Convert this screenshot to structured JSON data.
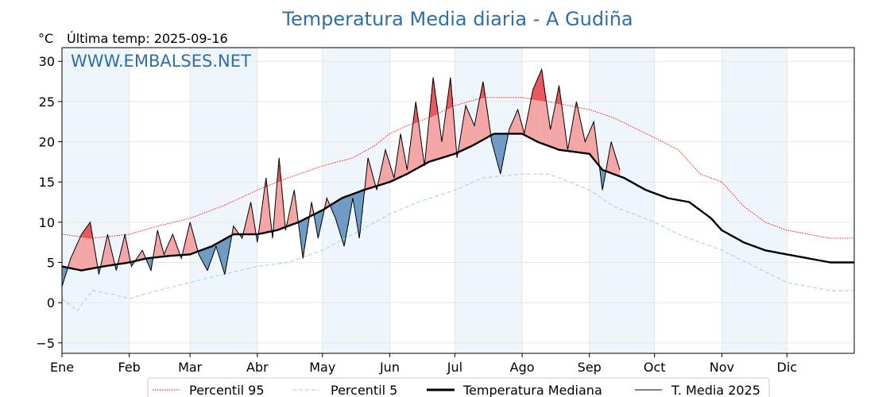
{
  "chart_data": {
    "type": "line",
    "title": "Temperatura Media diaria - A Gudiña",
    "unit_label": "°C",
    "last_temp_label": "Última temp: 2025-09-16",
    "watermark": "WWW.EMBALSES.NET",
    "ylim": [
      -6.3,
      31.7
    ],
    "yticks": [
      -5,
      0,
      5,
      10,
      15,
      20,
      25,
      30
    ],
    "xlim": [
      1,
      366
    ],
    "months": [
      "Ene",
      "Feb",
      "Mar",
      "Abr",
      "May",
      "Jun",
      "Jul",
      "Ago",
      "Sep",
      "Oct",
      "Nov",
      "Dic"
    ],
    "month_start_doy": [
      1,
      32,
      60,
      91,
      121,
      152,
      182,
      213,
      244,
      274,
      305,
      335
    ],
    "shaded_months": [
      "Ene",
      "Mar",
      "May",
      "Jul",
      "Sep",
      "Nov"
    ],
    "grid": true,
    "legend_position": "bottom-center",
    "legend": [
      "Percentil 95",
      "Percentil 5",
      "Temperatura Mediana",
      "T. Media 2025"
    ],
    "colors": {
      "p95": "#ff0000",
      "p5": "#add8e6",
      "median": "#000000",
      "actual": "#000000",
      "above_median_fill": "#f4a6a6",
      "above_p95_fill": "#e8585c",
      "below_median_fill": "#6f9bc4",
      "title": "#2e6fa7",
      "watermark": "#2e6fa7",
      "month_band": "#eef5fb"
    },
    "series": [
      {
        "name": "Percentil 95",
        "style": "dotted",
        "doy": [
          1,
          15,
          32,
          45,
          60,
          75,
          91,
          105,
          121,
          135,
          145,
          152,
          160,
          170,
          182,
          195,
          213,
          225,
          244,
          255,
          274,
          285,
          295,
          305,
          315,
          325,
          335,
          345,
          355,
          366
        ],
        "values": [
          8.5,
          8.0,
          8.5,
          9.5,
          10.5,
          12.0,
          14.0,
          15.5,
          17.0,
          18.0,
          19.5,
          21.0,
          22.0,
          23.0,
          24.5,
          25.5,
          25.5,
          25.0,
          24.0,
          23.0,
          20.5,
          19.0,
          16.0,
          15.0,
          12.0,
          10.0,
          9.0,
          8.5,
          8.0,
          8.0
        ]
      },
      {
        "name": "Percentil 5",
        "style": "dashed",
        "doy": [
          1,
          8,
          15,
          25,
          32,
          45,
          60,
          75,
          91,
          105,
          121,
          135,
          152,
          165,
          182,
          195,
          213,
          225,
          235,
          244,
          255,
          274,
          285,
          300,
          305,
          320,
          335,
          345,
          355,
          366
        ],
        "values": [
          0.5,
          -1.0,
          1.5,
          1.0,
          0.5,
          1.5,
          2.5,
          3.5,
          4.5,
          5.0,
          6.5,
          8.5,
          11.0,
          12.5,
          14.0,
          15.5,
          16.0,
          16.0,
          15.0,
          14.0,
          12.0,
          10.0,
          8.5,
          7.0,
          6.5,
          4.5,
          2.5,
          2.0,
          1.5,
          1.5
        ]
      },
      {
        "name": "Temperatura Mediana",
        "style": "solid-bold",
        "doy": [
          1,
          10,
          20,
          32,
          40,
          50,
          60,
          70,
          80,
          91,
          100,
          110,
          121,
          130,
          140,
          152,
          160,
          170,
          182,
          190,
          200,
          213,
          220,
          230,
          244,
          250,
          260,
          270,
          280,
          290,
          300,
          305,
          315,
          325,
          335,
          345,
          355,
          366
        ],
        "values": [
          4.5,
          4.0,
          4.5,
          5.0,
          5.5,
          5.8,
          6.0,
          7.0,
          8.5,
          8.5,
          9.0,
          10.0,
          11.5,
          13.0,
          14.0,
          15.0,
          16.0,
          17.5,
          18.5,
          19.5,
          21.0,
          21.0,
          20.0,
          19.0,
          18.5,
          16.5,
          15.5,
          14.0,
          13.0,
          12.5,
          10.5,
          9.0,
          7.5,
          6.5,
          6.0,
          5.5,
          5.0,
          5.0
        ]
      },
      {
        "name": "T. Media 2025",
        "style": "solid-thin",
        "doy": [
          1,
          5,
          10,
          14,
          18,
          22,
          26,
          30,
          33,
          38,
          42,
          45,
          48,
          52,
          56,
          60,
          64,
          68,
          72,
          76,
          80,
          84,
          88,
          91,
          95,
          98,
          101,
          104,
          108,
          112,
          116,
          119,
          123,
          127,
          131,
          135,
          138,
          142,
          146,
          150,
          154,
          157,
          160,
          164,
          168,
          172,
          176,
          180,
          183,
          187,
          191,
          195,
          199,
          203,
          207,
          211,
          214,
          218,
          222,
          226,
          230,
          234,
          238,
          242,
          246,
          250,
          254,
          258
        ],
        "values": [
          2.0,
          5.5,
          8.5,
          10.0,
          3.5,
          8.5,
          4.0,
          8.5,
          4.5,
          6.5,
          4.0,
          9.0,
          6.0,
          8.5,
          5.5,
          10.0,
          6.0,
          4.0,
          7.0,
          3.5,
          9.5,
          8.0,
          12.5,
          7.5,
          15.5,
          8.0,
          18.0,
          9.0,
          14.0,
          5.5,
          12.5,
          8.0,
          13.0,
          10.5,
          7.0,
          13.0,
          8.0,
          18.0,
          14.0,
          19.0,
          15.5,
          21.0,
          16.5,
          25.0,
          17.0,
          28.0,
          20.0,
          28.0,
          18.0,
          24.5,
          22.0,
          27.5,
          20.0,
          16.0,
          21.5,
          24.0,
          21.0,
          26.5,
          29.0,
          21.5,
          27.0,
          19.0,
          25.0,
          20.0,
          22.5,
          14.0,
          20.0,
          16.5
        ]
      }
    ]
  }
}
